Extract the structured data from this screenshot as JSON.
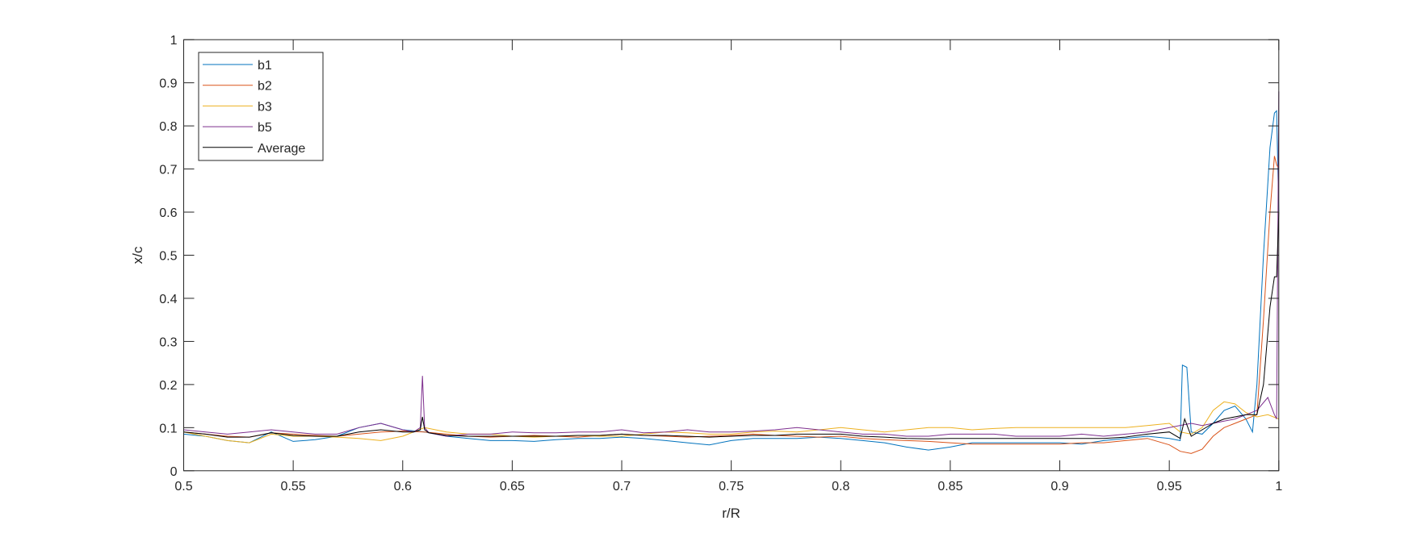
{
  "chart_data": {
    "type": "line",
    "title": "",
    "xlabel": "r/R",
    "ylabel": "x/c",
    "xlim": [
      0.5,
      1
    ],
    "ylim": [
      0,
      1
    ],
    "xticks": [
      0.5,
      0.55,
      0.6,
      0.65,
      0.7,
      0.75,
      0.8,
      0.85,
      0.9,
      0.95,
      1
    ],
    "xtick_labels": [
      "0.5",
      "0.55",
      "0.6",
      "0.65",
      "0.7",
      "0.75",
      "0.8",
      "0.85",
      "0.9",
      "0.95",
      "1"
    ],
    "yticks": [
      0,
      0.1,
      0.2,
      0.3,
      0.4,
      0.5,
      0.6,
      0.7,
      0.8,
      0.9,
      1
    ],
    "ytick_labels": [
      "0",
      "0.1",
      "0.2",
      "0.3",
      "0.4",
      "0.5",
      "0.6",
      "0.7",
      "0.8",
      "0.9",
      "1"
    ],
    "grid": false,
    "legend_placement": "top-left",
    "series": [
      {
        "name": "b1",
        "color": "#0072BD",
        "x": [
          0.5,
          0.51,
          0.52,
          0.53,
          0.54,
          0.55,
          0.56,
          0.57,
          0.58,
          0.59,
          0.6,
          0.61,
          0.62,
          0.63,
          0.64,
          0.65,
          0.66,
          0.67,
          0.68,
          0.69,
          0.7,
          0.71,
          0.72,
          0.73,
          0.74,
          0.75,
          0.76,
          0.77,
          0.78,
          0.79,
          0.8,
          0.81,
          0.82,
          0.83,
          0.84,
          0.85,
          0.86,
          0.87,
          0.88,
          0.89,
          0.9,
          0.91,
          0.92,
          0.93,
          0.94,
          0.95,
          0.955,
          0.956,
          0.958,
          0.96,
          0.965,
          0.97,
          0.975,
          0.98,
          0.985,
          0.988,
          0.99,
          0.993,
          0.996,
          0.998,
          0.999,
          1.0
        ],
        "y": [
          0.085,
          0.08,
          0.07,
          0.065,
          0.09,
          0.068,
          0.072,
          0.08,
          0.1,
          0.11,
          0.095,
          0.09,
          0.08,
          0.075,
          0.07,
          0.07,
          0.068,
          0.072,
          0.075,
          0.075,
          0.078,
          0.075,
          0.07,
          0.065,
          0.06,
          0.07,
          0.075,
          0.075,
          0.075,
          0.078,
          0.075,
          0.07,
          0.065,
          0.055,
          0.048,
          0.055,
          0.065,
          0.065,
          0.065,
          0.065,
          0.065,
          0.062,
          0.07,
          0.075,
          0.08,
          0.075,
          0.07,
          0.245,
          0.24,
          0.09,
          0.085,
          0.11,
          0.14,
          0.15,
          0.12,
          0.09,
          0.2,
          0.5,
          0.75,
          0.83,
          0.835,
          0.6
        ]
      },
      {
        "name": "b2",
        "color": "#D95319",
        "x": [
          0.5,
          0.51,
          0.52,
          0.53,
          0.54,
          0.55,
          0.56,
          0.57,
          0.58,
          0.59,
          0.6,
          0.61,
          0.62,
          0.63,
          0.64,
          0.65,
          0.66,
          0.67,
          0.68,
          0.69,
          0.7,
          0.71,
          0.72,
          0.73,
          0.74,
          0.75,
          0.76,
          0.77,
          0.78,
          0.79,
          0.8,
          0.81,
          0.82,
          0.83,
          0.84,
          0.85,
          0.86,
          0.87,
          0.88,
          0.89,
          0.9,
          0.91,
          0.92,
          0.93,
          0.94,
          0.95,
          0.955,
          0.96,
          0.965,
          0.97,
          0.975,
          0.98,
          0.985,
          0.99,
          0.993,
          0.996,
          0.998,
          0.999,
          1.0
        ],
        "y": [
          0.09,
          0.085,
          0.08,
          0.078,
          0.088,
          0.085,
          0.082,
          0.08,
          0.085,
          0.09,
          0.092,
          0.09,
          0.085,
          0.08,
          0.078,
          0.08,
          0.082,
          0.08,
          0.078,
          0.082,
          0.085,
          0.082,
          0.08,
          0.078,
          0.08,
          0.082,
          0.085,
          0.082,
          0.08,
          0.078,
          0.08,
          0.075,
          0.072,
          0.07,
          0.068,
          0.065,
          0.062,
          0.062,
          0.062,
          0.062,
          0.062,
          0.065,
          0.065,
          0.07,
          0.075,
          0.06,
          0.045,
          0.04,
          0.05,
          0.08,
          0.1,
          0.11,
          0.12,
          0.13,
          0.35,
          0.6,
          0.73,
          0.71,
          0.7
        ]
      },
      {
        "name": "b3",
        "color": "#EDB120",
        "x": [
          0.5,
          0.51,
          0.52,
          0.53,
          0.54,
          0.55,
          0.56,
          0.57,
          0.58,
          0.59,
          0.6,
          0.61,
          0.62,
          0.63,
          0.64,
          0.65,
          0.66,
          0.67,
          0.68,
          0.69,
          0.7,
          0.71,
          0.72,
          0.73,
          0.74,
          0.75,
          0.76,
          0.77,
          0.78,
          0.79,
          0.8,
          0.81,
          0.82,
          0.83,
          0.84,
          0.85,
          0.86,
          0.87,
          0.88,
          0.89,
          0.9,
          0.91,
          0.92,
          0.93,
          0.94,
          0.95,
          0.955,
          0.96,
          0.965,
          0.97,
          0.975,
          0.98,
          0.985,
          0.99,
          0.995,
          1.0
        ],
        "y": [
          0.09,
          0.08,
          0.07,
          0.065,
          0.085,
          0.08,
          0.08,
          0.078,
          0.075,
          0.07,
          0.08,
          0.1,
          0.09,
          0.085,
          0.085,
          0.08,
          0.078,
          0.08,
          0.082,
          0.08,
          0.08,
          0.085,
          0.09,
          0.088,
          0.085,
          0.085,
          0.09,
          0.092,
          0.09,
          0.095,
          0.1,
          0.095,
          0.09,
          0.095,
          0.1,
          0.1,
          0.095,
          0.098,
          0.1,
          0.1,
          0.1,
          0.1,
          0.1,
          0.1,
          0.105,
          0.11,
          0.09,
          0.085,
          0.1,
          0.14,
          0.16,
          0.155,
          0.135,
          0.125,
          0.13,
          0.12
        ]
      },
      {
        "name": "b5",
        "color": "#7E2F8E",
        "x": [
          0.5,
          0.51,
          0.52,
          0.53,
          0.54,
          0.55,
          0.56,
          0.57,
          0.58,
          0.59,
          0.6,
          0.605,
          0.608,
          0.609,
          0.61,
          0.612,
          0.62,
          0.63,
          0.64,
          0.65,
          0.66,
          0.67,
          0.68,
          0.69,
          0.7,
          0.71,
          0.72,
          0.73,
          0.74,
          0.75,
          0.76,
          0.77,
          0.78,
          0.79,
          0.8,
          0.81,
          0.82,
          0.83,
          0.84,
          0.85,
          0.86,
          0.87,
          0.88,
          0.89,
          0.9,
          0.91,
          0.92,
          0.93,
          0.94,
          0.95,
          0.96,
          0.965,
          0.97,
          0.975,
          0.98,
          0.985,
          0.99,
          0.995,
          0.998,
          0.999,
          1.0
        ],
        "y": [
          0.095,
          0.09,
          0.085,
          0.09,
          0.095,
          0.09,
          0.085,
          0.085,
          0.1,
          0.11,
          0.095,
          0.09,
          0.1,
          0.22,
          0.1,
          0.088,
          0.08,
          0.085,
          0.085,
          0.09,
          0.088,
          0.088,
          0.09,
          0.09,
          0.095,
          0.088,
          0.09,
          0.095,
          0.09,
          0.09,
          0.092,
          0.095,
          0.1,
          0.095,
          0.09,
          0.085,
          0.085,
          0.08,
          0.08,
          0.085,
          0.085,
          0.085,
          0.08,
          0.08,
          0.08,
          0.085,
          0.08,
          0.085,
          0.09,
          0.1,
          0.11,
          0.105,
          0.11,
          0.115,
          0.12,
          0.13,
          0.14,
          0.17,
          0.13,
          0.12,
          0.88
        ]
      },
      {
        "name": "Average",
        "color": "#000000",
        "x": [
          0.5,
          0.51,
          0.52,
          0.53,
          0.54,
          0.55,
          0.56,
          0.57,
          0.58,
          0.59,
          0.6,
          0.605,
          0.608,
          0.609,
          0.61,
          0.612,
          0.62,
          0.63,
          0.64,
          0.65,
          0.66,
          0.67,
          0.68,
          0.69,
          0.7,
          0.71,
          0.72,
          0.73,
          0.74,
          0.75,
          0.76,
          0.77,
          0.78,
          0.79,
          0.8,
          0.81,
          0.82,
          0.83,
          0.84,
          0.85,
          0.86,
          0.87,
          0.88,
          0.89,
          0.9,
          0.91,
          0.92,
          0.93,
          0.94,
          0.95,
          0.955,
          0.957,
          0.96,
          0.965,
          0.97,
          0.975,
          0.98,
          0.985,
          0.99,
          0.993,
          0.996,
          0.998,
          0.999,
          1.0
        ],
        "y": [
          0.09,
          0.085,
          0.078,
          0.078,
          0.088,
          0.082,
          0.08,
          0.08,
          0.09,
          0.095,
          0.09,
          0.09,
          0.095,
          0.125,
          0.095,
          0.088,
          0.082,
          0.08,
          0.08,
          0.08,
          0.08,
          0.08,
          0.082,
          0.082,
          0.085,
          0.082,
          0.082,
          0.08,
          0.078,
          0.08,
          0.082,
          0.082,
          0.085,
          0.085,
          0.085,
          0.08,
          0.078,
          0.075,
          0.074,
          0.075,
          0.075,
          0.075,
          0.075,
          0.075,
          0.075,
          0.075,
          0.075,
          0.078,
          0.085,
          0.09,
          0.075,
          0.12,
          0.08,
          0.095,
          0.11,
          0.12,
          0.125,
          0.13,
          0.13,
          0.2,
          0.38,
          0.45,
          0.45,
          0.6
        ]
      }
    ]
  }
}
